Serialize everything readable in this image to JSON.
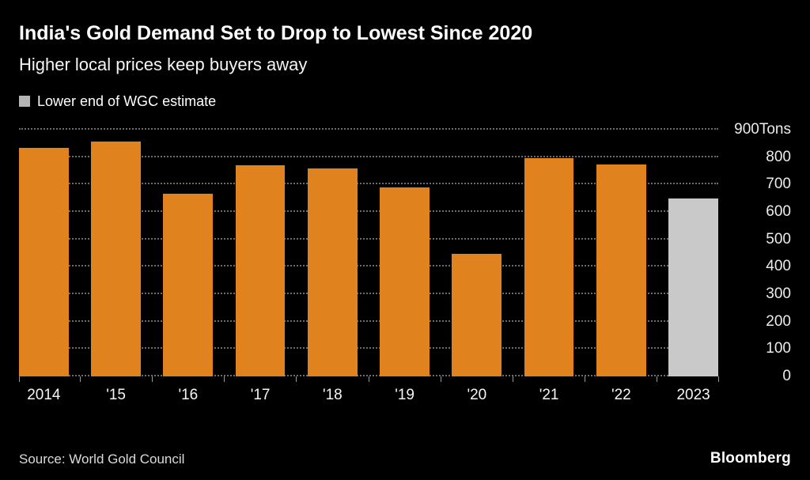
{
  "header": {
    "title": "India's Gold Demand Set to Drop to Lowest Since 2020",
    "subtitle": "Higher local prices keep buyers away",
    "legend": {
      "label": "Lower end of WGC estimate",
      "swatch_color": "#b5b5b5"
    }
  },
  "chart_data": {
    "type": "bar",
    "title": "India's Gold Demand Set to Drop to Lowest Since 2020",
    "subtitle": "Higher local prices keep buyers away",
    "unit": "Tons",
    "categories": [
      "2014",
      "'15",
      "'16",
      "'17",
      "'18",
      "'19",
      "'20",
      "'21",
      "'22",
      "2023"
    ],
    "values": [
      833,
      857,
      666,
      771,
      760,
      690,
      446,
      797,
      774,
      650
    ],
    "estimate_indices": [
      9
    ],
    "estimate_label": "Lower end of WGC estimate",
    "ylim": [
      0,
      900
    ],
    "ytick_step": 100,
    "ytick_labels": [
      "0",
      "100",
      "200",
      "300",
      "400",
      "500",
      "600",
      "700",
      "800",
      "900Tons"
    ],
    "bar_color": "#e0821e",
    "estimate_color": "#c9c9c9",
    "grid": "dotted-horizontal",
    "legend_position": "top-left",
    "y_axis_position": "right"
  },
  "footer": {
    "source": "Source: World Gold Council",
    "brand": "Bloomberg"
  },
  "colors": {
    "background": "#000000",
    "title_text": "#ffffff",
    "axis_text": "#ececec",
    "gridline": "#6b6b6b",
    "bar_orange": "#e0821e",
    "bar_gray": "#c9c9c9"
  }
}
